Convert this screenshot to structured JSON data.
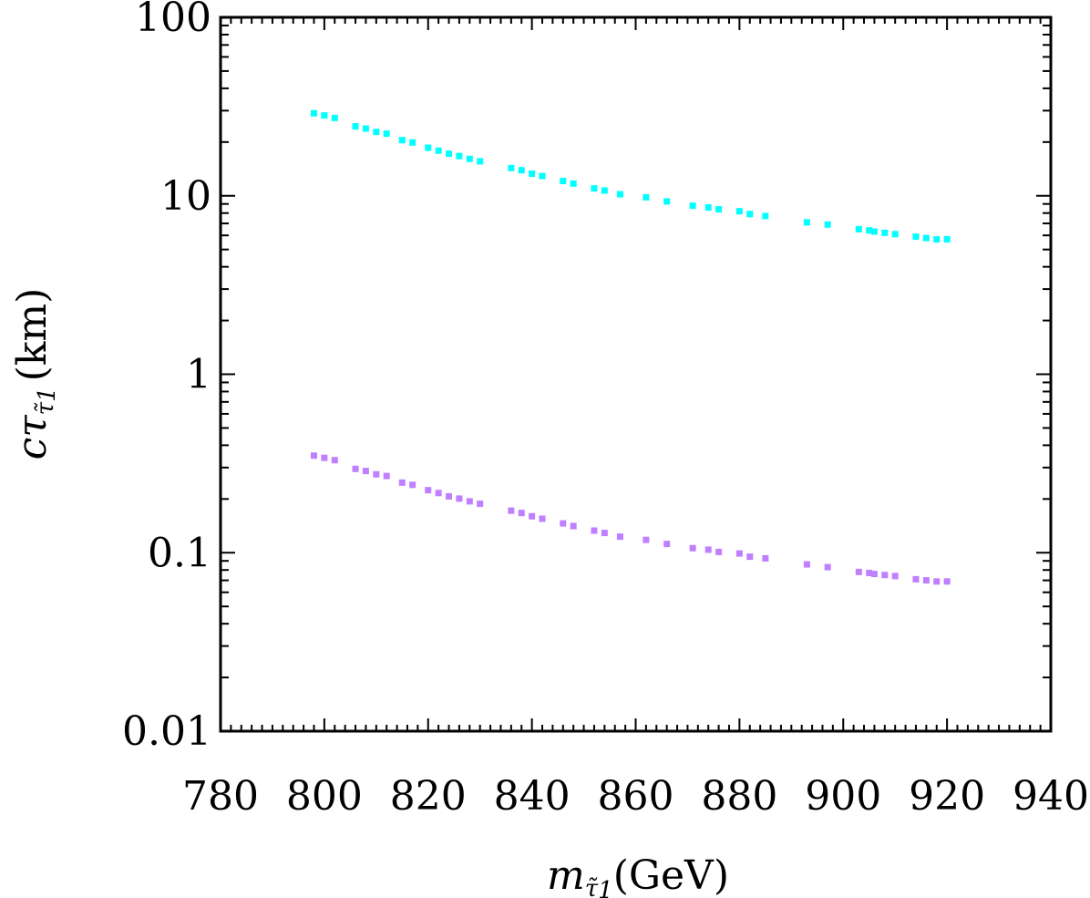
{
  "chart_data": {
    "type": "scatter",
    "xlabel": {
      "symbol": "m",
      "sub": "τ̃",
      "subsub": "1",
      "unit": "(GeV)"
    },
    "ylabel": {
      "symbol": "cτ",
      "sub": "τ̃",
      "subsub": "1",
      "unit": "(km)"
    },
    "xlim": [
      780,
      940
    ],
    "ylim": [
      0.01,
      100
    ],
    "yscale": "log",
    "grid": false,
    "legend": "none",
    "x_ticks": [
      "780",
      "800",
      "820",
      "840",
      "860",
      "880",
      "900",
      "920",
      "940"
    ],
    "y_ticks": [
      "0.01",
      "0.1",
      "1",
      "10",
      "100"
    ],
    "series": [
      {
        "color": "#00ffff",
        "x": [
          798,
          800,
          802,
          806,
          808,
          810,
          812,
          815,
          817,
          820,
          822,
          824,
          826,
          828,
          830,
          836,
          838,
          840,
          842,
          846,
          848,
          852,
          854,
          857,
          862,
          866,
          871,
          874,
          876,
          880,
          882,
          885,
          893,
          897,
          903,
          905,
          906,
          908,
          910,
          914,
          916,
          918,
          920
        ],
        "y": [
          29,
          28.2,
          27.3,
          24.5,
          23.8,
          22.8,
          22.3,
          20.5,
          19.9,
          18.6,
          17.9,
          17.2,
          16.7,
          16.1,
          15.6,
          14.3,
          13.9,
          13.3,
          12.9,
          12.1,
          11.7,
          11.0,
          10.7,
          10.2,
          9.8,
          9.3,
          8.8,
          8.6,
          8.4,
          8.2,
          7.9,
          7.7,
          7.1,
          6.9,
          6.5,
          6.4,
          6.3,
          6.2,
          6.1,
          5.9,
          5.8,
          5.7,
          5.7
        ]
      },
      {
        "color": "#bf7fff",
        "x": [
          798,
          800,
          802,
          806,
          808,
          810,
          812,
          815,
          817,
          820,
          822,
          824,
          826,
          828,
          830,
          836,
          838,
          840,
          842,
          846,
          848,
          852,
          854,
          857,
          862,
          866,
          871,
          874,
          876,
          880,
          882,
          885,
          893,
          897,
          903,
          905,
          906,
          908,
          910,
          914,
          916,
          918,
          920
        ],
        "y": [
          0.35,
          0.34,
          0.33,
          0.295,
          0.287,
          0.275,
          0.269,
          0.247,
          0.24,
          0.224,
          0.216,
          0.207,
          0.201,
          0.194,
          0.188,
          0.172,
          0.167,
          0.16,
          0.155,
          0.146,
          0.141,
          0.133,
          0.129,
          0.123,
          0.118,
          0.112,
          0.106,
          0.104,
          0.101,
          0.099,
          0.095,
          0.093,
          0.086,
          0.083,
          0.078,
          0.077,
          0.076,
          0.075,
          0.074,
          0.071,
          0.07,
          0.069,
          0.069
        ]
      }
    ]
  }
}
